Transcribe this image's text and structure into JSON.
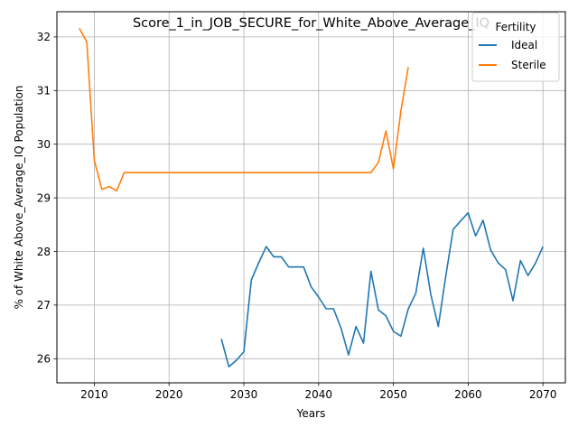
{
  "chart_data": {
    "type": "line",
    "title": "Score_1_in_JOB_SECURE_for_White_Above_Average_IQ",
    "xlabel": "Years",
    "ylabel": "% of White Above_Average_IQ Population",
    "xlim": [
      2005,
      2073
    ],
    "ylim": [
      25.55,
      32.47
    ],
    "xticks": [
      2010,
      2020,
      2030,
      2040,
      2050,
      2060,
      2070
    ],
    "yticks": [
      26,
      27,
      28,
      29,
      30,
      31,
      32
    ],
    "grid": true,
    "legend": {
      "title": "Fertility",
      "placement": "top-right"
    },
    "series": [
      {
        "name": "Ideal",
        "color": "#1f77b4",
        "x": [
          2027,
          2028,
          2029,
          2030,
          2031,
          2032,
          2033,
          2034,
          2035,
          2036,
          2037,
          2038,
          2039,
          2040,
          2041,
          2042,
          2043,
          2044,
          2045,
          2046,
          2047,
          2048,
          2049,
          2050,
          2051,
          2052,
          2053,
          2054,
          2055,
          2056,
          2057,
          2058,
          2059,
          2060,
          2061,
          2062,
          2063,
          2064,
          2065,
          2066,
          2067,
          2068,
          2069,
          2070
        ],
        "y": [
          26.37,
          25.85,
          25.97,
          26.13,
          27.47,
          27.79,
          28.09,
          27.9,
          27.9,
          27.71,
          27.71,
          27.71,
          27.34,
          27.15,
          26.93,
          26.93,
          26.57,
          26.07,
          26.6,
          26.29,
          27.63,
          26.91,
          26.8,
          26.51,
          26.42,
          26.93,
          27.22,
          28.06,
          27.2,
          26.6,
          27.53,
          28.41,
          28.57,
          28.72,
          28.29,
          28.58,
          28.03,
          27.79,
          27.66,
          27.08,
          27.83,
          27.55,
          27.78,
          28.09
        ]
      },
      {
        "name": "Sterile",
        "color": "#ff7f0e",
        "x": [
          2008,
          2009,
          2010,
          2011,
          2012,
          2013,
          2014,
          2015,
          2016,
          2017,
          2018,
          2019,
          2020,
          2021,
          2022,
          2023,
          2024,
          2025,
          2026,
          2027,
          2028,
          2029,
          2030,
          2031,
          2032,
          2033,
          2034,
          2035,
          2036,
          2037,
          2038,
          2039,
          2040,
          2041,
          2042,
          2043,
          2044,
          2045,
          2046,
          2047,
          2048,
          2049,
          2050,
          2051,
          2052
        ],
        "y": [
          32.16,
          31.91,
          29.7,
          29.16,
          29.21,
          29.13,
          29.47,
          29.47,
          29.47,
          29.47,
          29.47,
          29.47,
          29.47,
          29.47,
          29.47,
          29.47,
          29.47,
          29.47,
          29.47,
          29.47,
          29.47,
          29.47,
          29.47,
          29.47,
          29.47,
          29.47,
          29.47,
          29.47,
          29.47,
          29.47,
          29.47,
          29.47,
          29.47,
          29.47,
          29.47,
          29.47,
          29.47,
          29.47,
          29.47,
          29.47,
          29.66,
          30.25,
          29.54,
          30.62,
          31.44
        ]
      }
    ]
  }
}
